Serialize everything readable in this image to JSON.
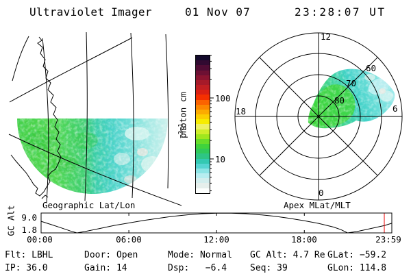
{
  "header": {
    "title": "Ultraviolet Imager",
    "date": "01 Nov 07",
    "time": "23:28:07 UT"
  },
  "panels": {
    "geo_caption": "Geographic Lat/Lon",
    "polar_caption": "Apex MLat/MLT"
  },
  "chart_data": {
    "colorbar": {
      "type": "colorbar",
      "scale": "log",
      "unit_prefix": "photon cm",
      "unit_sup1": "−2",
      "unit_mid": "s",
      "unit_sup2": "−1",
      "ticks": [
        100,
        10
      ],
      "tick_labels": [
        "100",
        "10"
      ],
      "minor_ticks": [
        3,
        4,
        5,
        6,
        7,
        8,
        9,
        20,
        30,
        40,
        50,
        60,
        70,
        80,
        90,
        200,
        300,
        400,
        500
      ],
      "px": {
        "y10": 232,
        "decade": 89,
        "x_edge": 305,
        "y_top": 80,
        "y_bottom": 281
      },
      "colors_top_to_bottom": [
        "#12092b",
        "#310a31",
        "#4f0c34",
        "#6d1033",
        "#8b1430",
        "#a61a29",
        "#c11f22",
        "#da2013",
        "#f53000",
        "#fb6300",
        "#fc8800",
        "#fcab00",
        "#fcce00",
        "#f7ec00",
        "#eef163",
        "#cfee2b",
        "#a0e71e",
        "#68dd2a",
        "#40d33c",
        "#30c95a",
        "#2ec584",
        "#33c9b2",
        "#55d5d2",
        "#8ce4e5",
        "#b7edf0",
        "#d3eeee",
        "#e6efec",
        "#fdfffe"
      ]
    },
    "geo_image": {
      "type": "heatmap",
      "caption": "Geographic Lat/Lon",
      "description": "Southern-hemisphere UV auroral image: bottom semicircle of data, green emission on west side fading to cyan/white on east side, geographic lat/lon grid and coastline overplotted",
      "colors": {
        "aurora_green": "#46d148",
        "aurora_teal": "#3bceab",
        "aurora_cyan": "#48d2c9",
        "aurora_light": "#c2efec",
        "grid_line": "#000000"
      }
    },
    "polar_image": {
      "type": "heatmap",
      "caption": "Apex MLat/MLT",
      "rings_mlat": [
        80,
        70,
        60,
        50
      ],
      "ring_labels": [
        "80",
        "70",
        "60"
      ],
      "mlt_labels": {
        "top": "12",
        "right": "6",
        "bottom": "0",
        "left": "18"
      },
      "description": "Polar MLat/MLT dial: auroral blob from pole toward dawn sector (MLT 6-11), green core with cyan outer edge",
      "colors": {
        "aurora_green": "#3fd63c",
        "aurora_cyan": "#41d2c8",
        "aurora_light": "#baeef0"
      }
    },
    "timeline": {
      "type": "line",
      "ylabel": "GC Alt",
      "y_ticks": [
        9.0,
        1.8
      ],
      "y_tick_labels": [
        "9.0",
        "1.8"
      ],
      "x_tick_labels": [
        "00:00",
        "06:00",
        "12:00",
        "18:00",
        "23:59"
      ],
      "x_tick_hours": [
        0,
        6,
        12,
        18,
        23.983
      ],
      "t_max": 23.983,
      "ylim": [
        1.8,
        9.0
      ],
      "points": [
        [
          0,
          6.0
        ],
        [
          0.7,
          4.8
        ],
        [
          1.4,
          3.6
        ],
        [
          2.0,
          2.5
        ],
        [
          2.45,
          1.8
        ],
        [
          3.0,
          2.3
        ],
        [
          4,
          3.4
        ],
        [
          5,
          4.5
        ],
        [
          6,
          5.4
        ],
        [
          7,
          6.3
        ],
        [
          8,
          7.1
        ],
        [
          9,
          7.8
        ],
        [
          10,
          8.35
        ],
        [
          11,
          8.75
        ],
        [
          12,
          8.95
        ],
        [
          13,
          8.95
        ],
        [
          14,
          8.75
        ],
        [
          15,
          8.35
        ],
        [
          16,
          7.8
        ],
        [
          17,
          7.1
        ],
        [
          18,
          6.2
        ],
        [
          19,
          5.2
        ],
        [
          20,
          3.9
        ],
        [
          20.5,
          3.0
        ],
        [
          20.95,
          1.8
        ],
        [
          21.6,
          2.3
        ],
        [
          22.3,
          3.1
        ],
        [
          23.0,
          3.9
        ],
        [
          23.5,
          4.5
        ],
        [
          23.983,
          5.3
        ]
      ],
      "cursor": {
        "time_hours": 23.467,
        "color": "#ee0000"
      }
    }
  },
  "status": {
    "rows": [
      [
        "Flt: LBHL",
        "Door: Open",
        "Mode: Normal",
        "GC Alt: 4.7 Re",
        "GLat: −59.2"
      ],
      [
        "IP: 36.0",
        "Gain: 14",
        "Dsp:   −6.4",
        "Seq: 39",
        "GLon: 114.8"
      ]
    ]
  }
}
